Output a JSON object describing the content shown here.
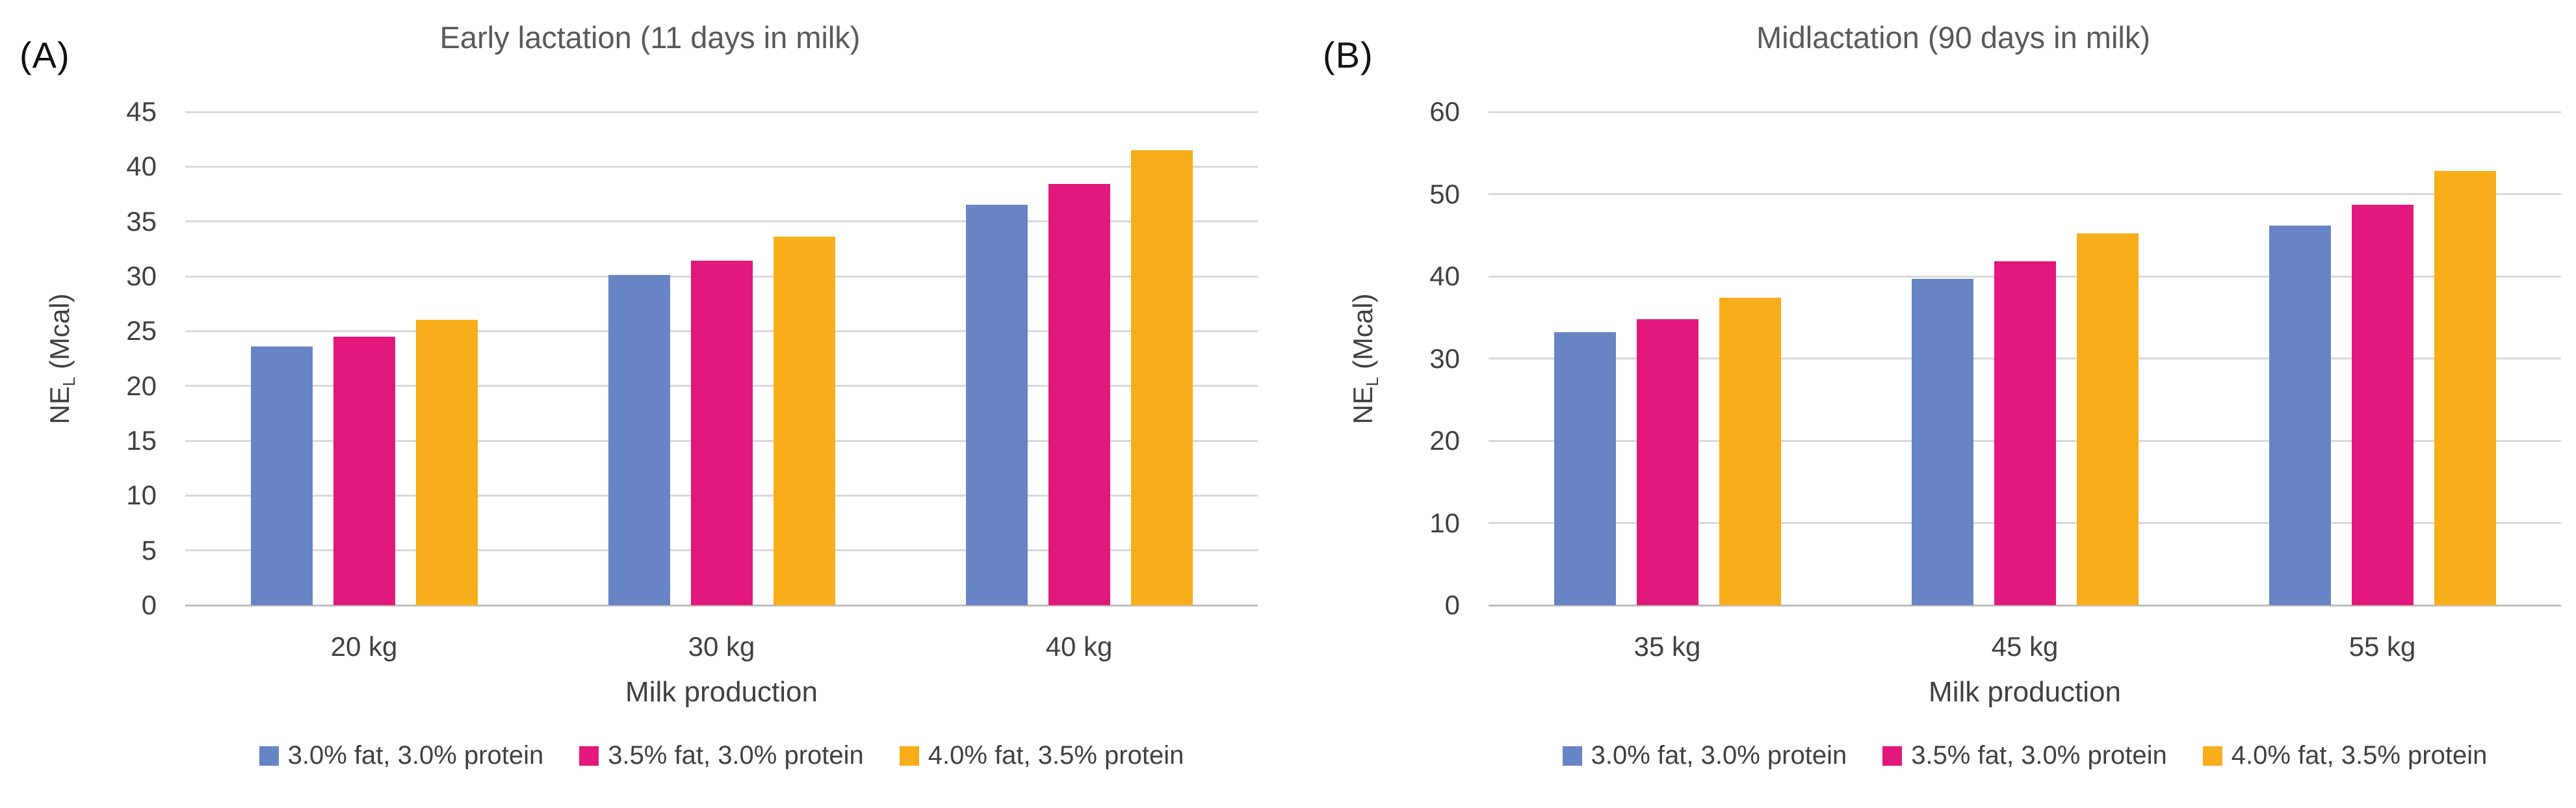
{
  "figure": {
    "panels": [
      {
        "tag": "(A)",
        "title": "Early lactation (11 days in milk)",
        "y_axis_title": {
          "prefix": "NE",
          "sub": "L",
          "suffix": " (Mcal)"
        },
        "x_axis_title": "Milk production"
      },
      {
        "tag": "(B)",
        "title": "Midlactation (90 days in milk)",
        "y_axis_title": {
          "prefix": "NE",
          "sub": "L",
          "suffix": " (Mcal)"
        },
        "x_axis_title": "Milk production"
      }
    ]
  },
  "chart_data": [
    {
      "type": "bar",
      "panel": "(A)",
      "title": "Early lactation (11 days in milk)",
      "categories": [
        "20 kg",
        "30 kg",
        "40 kg"
      ],
      "series": [
        {
          "name": "3.0% fat, 3.0% protein",
          "color": "#6784C4",
          "values": [
            23.6,
            30.1,
            36.5
          ]
        },
        {
          "name": "3.5% fat, 3.0% protein",
          "color": "#E2187C",
          "values": [
            24.5,
            31.4,
            38.4
          ]
        },
        {
          "name": "4.0% fat, 3.5% protein",
          "color": "#F8AD1B",
          "values": [
            26.0,
            33.6,
            41.5
          ]
        }
      ],
      "xlabel": "Milk production",
      "ylabel": "NEL (Mcal)",
      "ylim": [
        0,
        45
      ],
      "ytick_step": 5,
      "grid": true,
      "legend_position": "bottom"
    },
    {
      "type": "bar",
      "panel": "(B)",
      "title": "Midlactation (90 days in milk)",
      "categories": [
        "35 kg",
        "45 kg",
        "55 kg"
      ],
      "series": [
        {
          "name": "3.0% fat, 3.0% protein",
          "color": "#6784C4",
          "values": [
            33.2,
            39.7,
            46.2
          ]
        },
        {
          "name": "3.5% fat, 3.0% protein",
          "color": "#E2187C",
          "values": [
            34.8,
            41.8,
            48.7
          ]
        },
        {
          "name": "4.0% fat, 3.5% protein",
          "color": "#F8AD1B",
          "values": [
            37.4,
            45.2,
            52.8
          ]
        }
      ],
      "xlabel": "Milk production",
      "ylabel": "NEL (Mcal)",
      "ylim": [
        0,
        60
      ],
      "ytick_step": 10,
      "grid": true,
      "legend_position": "bottom"
    }
  ]
}
